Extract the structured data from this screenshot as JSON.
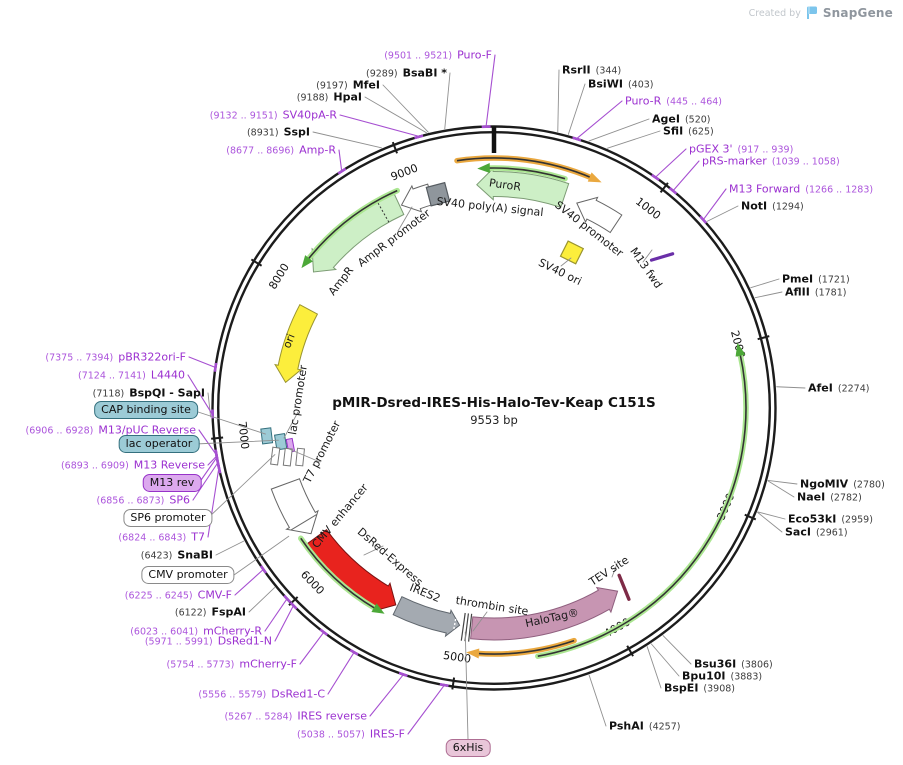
{
  "watermark": {
    "created_by": "Created by",
    "brand": "SnapGene"
  },
  "plasmid": {
    "title": "pMIR-Dsred-IRES-His-Halo-Tev-Keap C151S",
    "length": "9553 bp",
    "length_bp": 9553
  },
  "colors": {
    "cds_green": "#CDEFC6",
    "cds_green_stroke": "#7C9B74",
    "white": "#FFFFFF",
    "white_stroke": "#666666",
    "yellow": "#FCEE3C",
    "yellow_stroke": "#9A942F",
    "red": "#E8231E",
    "red_stroke": "#7A1212",
    "mauve": "#C795B2",
    "mauve_stroke": "#8F5F7E",
    "gray_band": "#A4AAB1",
    "gray_band_stroke": "#5F666D",
    "gray_box": "#8F969C",
    "gray_box_stroke": "#565C61",
    "orange_arc": "#EAA83F",
    "arc_core": "#333333",
    "green_glow": "#ABE691",
    "green_head": "#4CA838",
    "primer_name": "#9B30D0",
    "primer_range": "#AC55DC",
    "primer_line": "#A64FD1",
    "enzyme_line": "#909090",
    "ring": "#1C1C1C",
    "teal_fill": "#9CCBD6",
    "teal_border": "#34707E",
    "purplebox_fill": "#DCA9EE",
    "purplebox_border": "#9632C8",
    "pinkbox_fill": "#E9C6D9",
    "pinkbox_border": "#AE6E93",
    "m13fwd_marker": "#6A2FA8",
    "tev_marker": "#7E2B47"
  },
  "ticks": [
    "1000",
    "2000",
    "3000",
    "4000",
    "5000",
    "6000",
    "7000",
    "8000",
    "9000"
  ],
  "enzymes": [
    {
      "name": "RsrII",
      "pos": "(344)"
    },
    {
      "name": "BsiWI",
      "pos": "(403)"
    },
    {
      "name": "AgeI",
      "pos": "(520)"
    },
    {
      "name": "SfiI",
      "pos": "(625)"
    },
    {
      "name": "NotI",
      "pos": "(1294)"
    },
    {
      "name": "PmeI",
      "pos": "(1721)"
    },
    {
      "name": "AflII",
      "pos": "(1781)"
    },
    {
      "name": "AfeI",
      "pos": "(2274)"
    },
    {
      "name": "NgoMIV",
      "pos": "(2780)"
    },
    {
      "name": "NaeI",
      "pos": "(2782)"
    },
    {
      "name": "Eco53kI",
      "pos": "(2959)"
    },
    {
      "name": "SacI",
      "pos": "(2961)"
    },
    {
      "name": "Bsu36I",
      "pos": "(3806)"
    },
    {
      "name": "Bpu10I",
      "pos": "(3883)"
    },
    {
      "name": "BspEI",
      "pos": "(3908)"
    },
    {
      "name": "PshAI",
      "pos": "(4257)"
    },
    {
      "name": "SnaBI",
      "pos": "(6423)"
    },
    {
      "name": "FspAI",
      "pos": "(6122)"
    },
    {
      "name": "BspQI - SapI",
      "pos": "(7118)"
    },
    {
      "name": "SspI",
      "pos": "(8931)"
    },
    {
      "name": "HpaI",
      "pos": "(9188)"
    },
    {
      "name": "MfeI",
      "pos": "(9197)"
    },
    {
      "name": "BsaBI *",
      "pos": "(9289)"
    }
  ],
  "primers": [
    {
      "name": "Puro-F",
      "range": "(9501 .. 9521)"
    },
    {
      "name": "SV40pA-R",
      "range": "(9132 .. 9151)"
    },
    {
      "name": "Amp-R",
      "range": "(8677 .. 8696)"
    },
    {
      "name": "pBR322ori-F",
      "range": "(7375 .. 7394)"
    },
    {
      "name": "L4440",
      "range": "(7124 .. 7141)"
    },
    {
      "name": "M13/pUC Reverse",
      "range": "(6906 .. 6928)"
    },
    {
      "name": "M13 Reverse",
      "range": "(6893 .. 6909)"
    },
    {
      "name": "SP6",
      "range": "(6856 .. 6873)"
    },
    {
      "name": "T7",
      "range": "(6824 .. 6843)"
    },
    {
      "name": "CMV-F",
      "range": "(6225 .. 6245)"
    },
    {
      "name": "mCherry-R",
      "range": "(6023 .. 6041)"
    },
    {
      "name": "DsRed1-N",
      "range": "(5971 .. 5991)"
    },
    {
      "name": "mCherry-F",
      "range": "(5754 .. 5773)"
    },
    {
      "name": "DsRed1-C",
      "range": "(5556 .. 5579)"
    },
    {
      "name": "IRES reverse",
      "range": "(5267 .. 5284)"
    },
    {
      "name": "IRES-F",
      "range": "(5038 .. 5057)"
    },
    {
      "name": "Puro-R",
      "range": "(445 .. 464)"
    },
    {
      "name": "pGEX 3'",
      "range": "(917 .. 939)"
    },
    {
      "name": "pRS-marker",
      "range": "(1039 .. 1058)"
    },
    {
      "name": "M13 Forward",
      "range": "(1266 .. 1283)"
    }
  ],
  "boxed_labels": [
    {
      "text": "CAP binding site",
      "style": "teal"
    },
    {
      "text": "lac operator",
      "style": "teal"
    },
    {
      "text": "M13 rev",
      "style": "purple"
    },
    {
      "text": "SP6 promoter",
      "style": "white"
    },
    {
      "text": "CMV promoter",
      "style": "white"
    },
    {
      "text": "6xHis",
      "style": "pink"
    }
  ],
  "features": [
    {
      "label": "PuroR"
    },
    {
      "label": "SV40 poly(A) signal"
    },
    {
      "label": "SV40 promoter"
    },
    {
      "label": "M13 fwd"
    },
    {
      "label": "SV40 ori"
    },
    {
      "label": "AmpR"
    },
    {
      "label": "AmpR promoter"
    },
    {
      "label": "ori"
    },
    {
      "label": "lac promoter"
    },
    {
      "label": "T7 promoter"
    },
    {
      "label": "CMV enhancer"
    },
    {
      "label": "DsRed-Express"
    },
    {
      "label": "IRES2"
    },
    {
      "label": "thrombin site"
    },
    {
      "label": "HaloTag®"
    },
    {
      "label": "TEV site"
    }
  ]
}
